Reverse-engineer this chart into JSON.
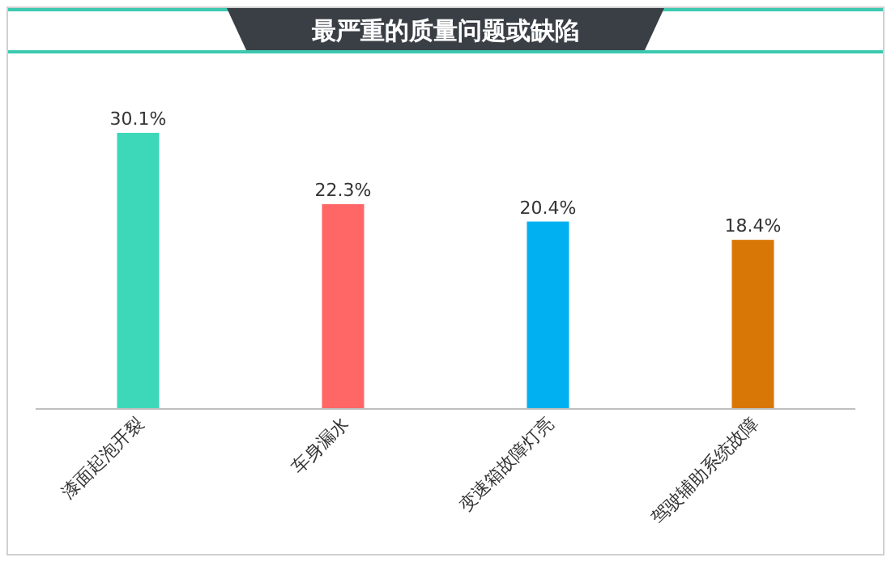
{
  "chart_data": {
    "type": "bar",
    "title": "最严重的质量问题或缺陷",
    "categories": [
      "漆面起泡开裂",
      "车身漏水",
      "变速箱故障灯亮",
      "驾驶辅助系统故障"
    ],
    "values": [
      30.1,
      22.3,
      20.4,
      18.4
    ],
    "colors": [
      "#3dd8b9",
      "#ff6666",
      "#00b0f0",
      "#d97706"
    ],
    "value_labels": [
      "30.1%",
      "22.3%",
      "20.4%",
      "18.4%"
    ]
  }
}
